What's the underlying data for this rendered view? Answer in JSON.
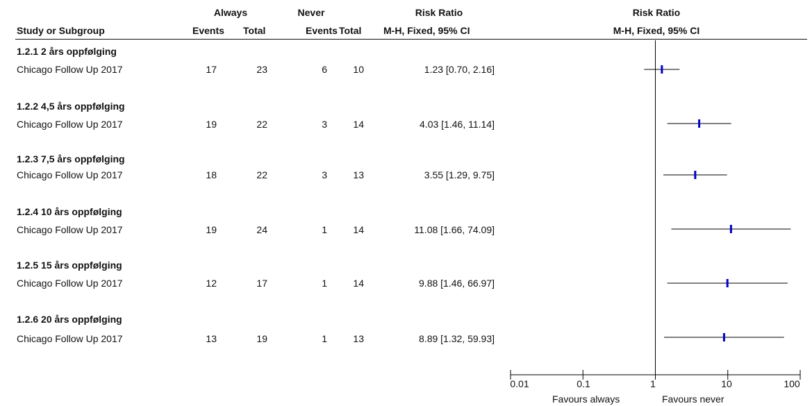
{
  "header": {
    "group1": "Always",
    "group2": "Never",
    "rr": "Risk Ratio",
    "rr_method": "M-H, Fixed, 95% CI",
    "study": "Study or Subgroup",
    "events": "Events",
    "total": "Total",
    "plot_title": "Risk Ratio",
    "plot_method": "M-H, Fixed, 95% CI"
  },
  "subgroups": [
    {
      "title": "1.2.1 2 års oppfølging",
      "study": "Chicago Follow Up 2017",
      "ev1": "17",
      "tot1": "23",
      "ev2": "6",
      "tot2": "10",
      "ci": "1.23 [0.70, 2.16]"
    },
    {
      "title": "1.2.2 4,5 års oppfølging",
      "study": "Chicago Follow Up 2017",
      "ev1": "19",
      "tot1": "22",
      "ev2": "3",
      "tot2": "14",
      "ci": "4.03 [1.46, 11.14]"
    },
    {
      "title": "1.2.3 7,5 års oppfølging",
      "study": "Chicago Follow Up 2017",
      "ev1": "18",
      "tot1": "22",
      "ev2": "3",
      "tot2": "13",
      "ci": "3.55 [1.29, 9.75]"
    },
    {
      "title": "1.2.4 10 års oppfølging",
      "study": "Chicago Follow Up 2017",
      "ev1": "19",
      "tot1": "24",
      "ev2": "1",
      "tot2": "14",
      "ci": "11.08 [1.66, 74.09]"
    },
    {
      "title": "1.2.5 15 års oppfølging",
      "study": "Chicago Follow Up 2017",
      "ev1": "12",
      "tot1": "17",
      "ev2": "1",
      "tot2": "14",
      "ci": "9.88 [1.46, 66.97]"
    },
    {
      "title": "1.2.6 20 års oppfølging",
      "study": "Chicago Follow Up 2017",
      "ev1": "13",
      "tot1": "19",
      "ev2": "1",
      "tot2": "13",
      "ci": "8.89 [1.32, 59.93]"
    }
  ],
  "axis": {
    "ticks": [
      "0.01",
      "0.1",
      "1",
      "10",
      "100"
    ],
    "favours_left": "Favours always",
    "favours_right": "Favours never"
  },
  "colors": {
    "marker": "#0000cc",
    "line": "#000000"
  },
  "chart_data": {
    "type": "forest",
    "scale": "log",
    "xlim": [
      0.01,
      100
    ],
    "reference_line": 1,
    "tick_values": [
      0.01,
      0.1,
      1,
      10,
      100
    ],
    "points": [
      {
        "estimate": 1.23,
        "lower": 0.7,
        "upper": 2.16
      },
      {
        "estimate": 4.03,
        "lower": 1.46,
        "upper": 11.14
      },
      {
        "estimate": 3.55,
        "lower": 1.29,
        "upper": 9.75
      },
      {
        "estimate": 11.08,
        "lower": 1.66,
        "upper": 74.09
      },
      {
        "estimate": 9.88,
        "lower": 1.46,
        "upper": 66.97
      },
      {
        "estimate": 8.89,
        "lower": 1.32,
        "upper": 59.93
      }
    ]
  }
}
